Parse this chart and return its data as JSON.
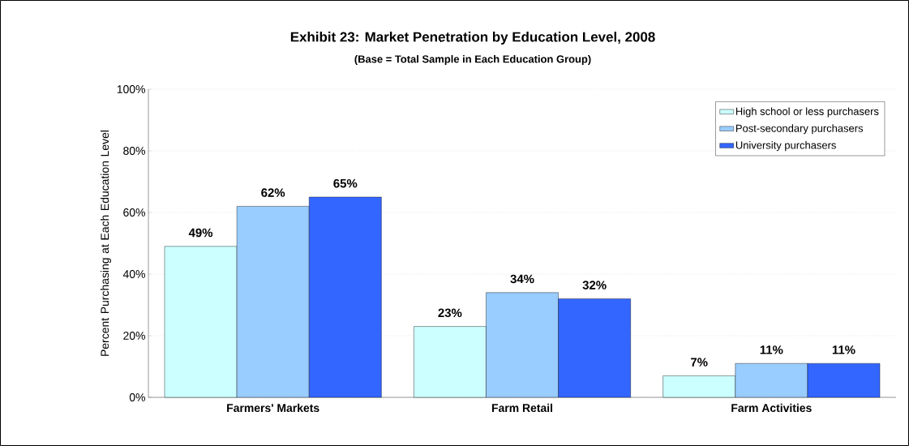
{
  "chart_data": {
    "type": "bar",
    "title": "Exhibit 23: Market Penetration by Education Level, 2008",
    "subtitle": "(Base = Total Sample in Each Education Group)",
    "ylabel": "Percent Purchasing at Each Education Level",
    "categories": [
      "Farmers' Markets",
      "Farm Retail",
      "Farm Activities"
    ],
    "series": [
      {
        "name": "High school or less purchasers",
        "color": "#ccffff",
        "values": [
          49,
          23,
          7
        ],
        "value_labels": [
          "49%",
          "23%",
          "7%"
        ]
      },
      {
        "name": "Post-secondary purchasers",
        "color": "#99ccff",
        "values": [
          62,
          34,
          11
        ],
        "value_labels": [
          "62%",
          "34%",
          "11%"
        ]
      },
      {
        "name": "University purchasers",
        "color": "#3366ff",
        "values": [
          65,
          32,
          11
        ],
        "value_labels": [
          "65%",
          "32%",
          "11%"
        ]
      }
    ],
    "ylim": [
      0,
      100
    ],
    "yticks": [
      {
        "value": 0,
        "label": "0%"
      },
      {
        "value": 20,
        "label": "20%"
      },
      {
        "value": 40,
        "label": "40%"
      },
      {
        "value": 60,
        "label": "60%"
      },
      {
        "value": 80,
        "label": "80%"
      },
      {
        "value": 100,
        "label": "100%"
      }
    ],
    "grid": "y",
    "legend": "top right"
  }
}
